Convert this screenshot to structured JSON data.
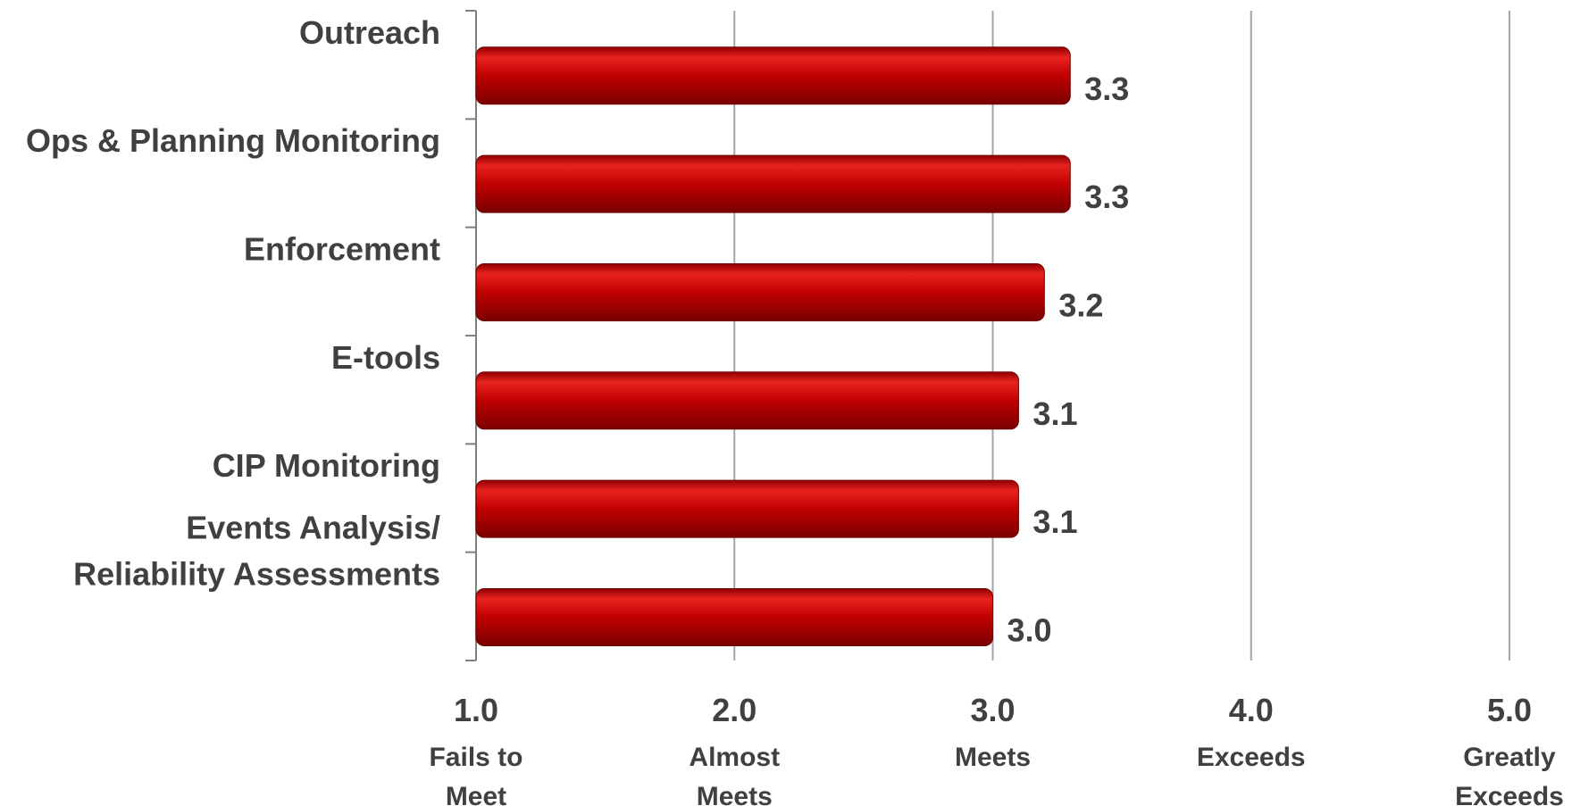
{
  "chart_data": {
    "type": "bar",
    "orientation": "horizontal",
    "categories": [
      [
        "Outreach"
      ],
      [
        "Ops & Planning Monitoring"
      ],
      [
        "Enforcement"
      ],
      [
        "E-tools"
      ],
      [
        "CIP Monitoring"
      ],
      [
        "Events Analysis/",
        "Reliability Assessments"
      ]
    ],
    "values": [
      3.3,
      3.3,
      3.2,
      3.1,
      3.1,
      3.0
    ],
    "value_labels": [
      "3.3",
      "3.3",
      "3.2",
      "3.1",
      "3.1",
      "3.0"
    ],
    "xlim": [
      1.0,
      5.0
    ],
    "x_ticks": [
      {
        "value": 1.0,
        "label": "1.0",
        "desc": [
          "Fails to",
          "Meet"
        ]
      },
      {
        "value": 2.0,
        "label": "2.0",
        "desc": [
          "Almost",
          "Meets"
        ]
      },
      {
        "value": 3.0,
        "label": "3.0",
        "desc": [
          "Meets"
        ]
      },
      {
        "value": 4.0,
        "label": "4.0",
        "desc": [
          "Exceeds"
        ]
      },
      {
        "value": 5.0,
        "label": "5.0",
        "desc": [
          "Greatly",
          "Exceeds"
        ]
      }
    ],
    "grid": "vertical",
    "bar_color": "#c00000",
    "title": "",
    "xlabel": "",
    "ylabel": ""
  }
}
